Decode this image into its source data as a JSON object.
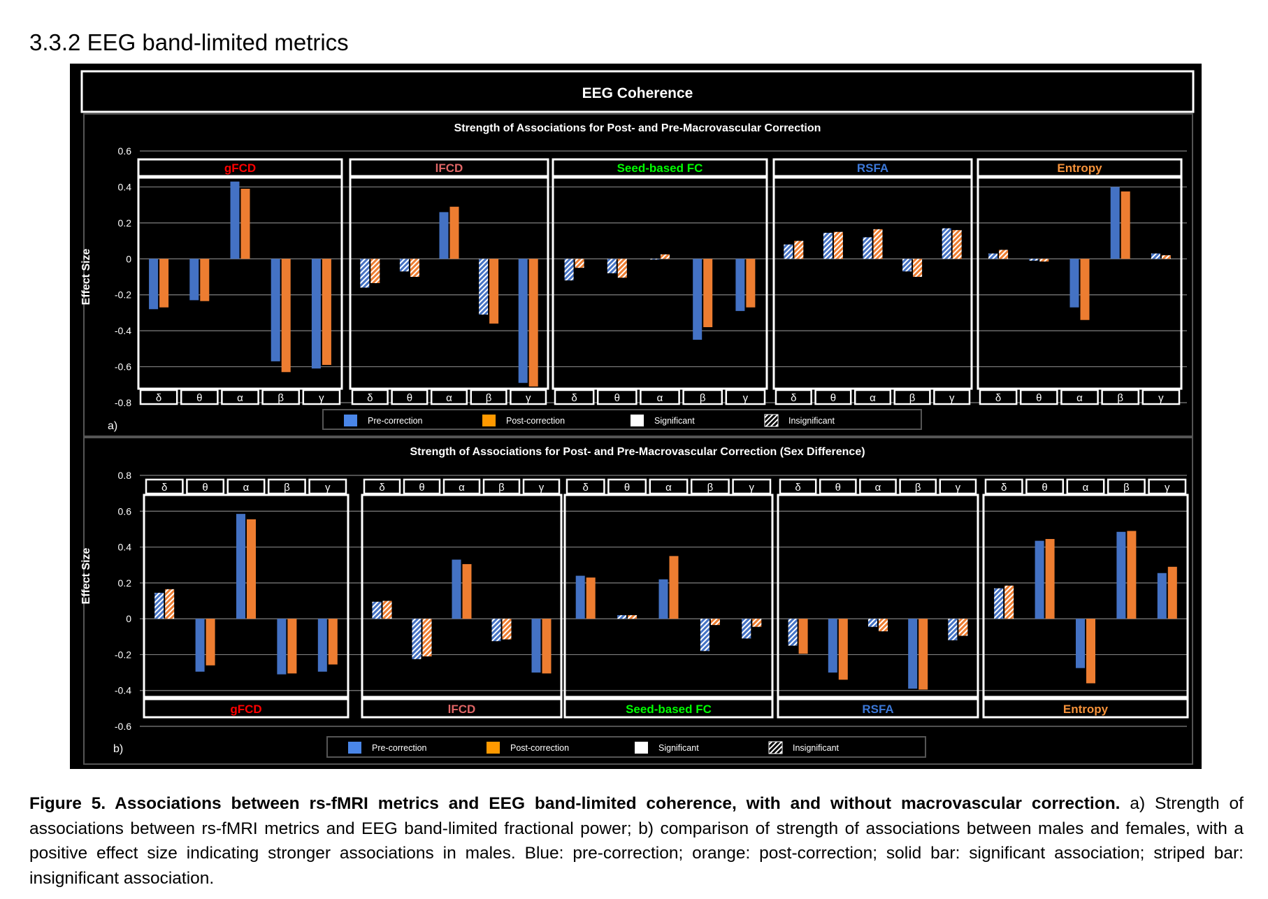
{
  "heading": "3.3.2 EEG band-limited metrics",
  "figure_header": "EEG Coherence",
  "caption": {
    "bold": "Figure 5. Associations between rs-fMRI metrics and EEG band-limited coherence, with and without macrovascular correction.",
    "text": " a) Strength of associations between rs-fMRI metrics and EEG band-limited fractional power; b) comparison of strength of associations between males and females, with a positive effect size indicating stronger associations in males. Blue: pre-correction; orange: post-correction; solid bar: significant association; striped bar: insignificant association."
  },
  "colors": {
    "pre": "#4472C4",
    "post": "#ED7D31",
    "legend_pre": "#4A86E8",
    "legend_post": "#FF9900"
  },
  "legend": {
    "pre": "Pre-correction",
    "post": "Post-correction",
    "significant": "Significant",
    "insignificant": "Insignificant"
  },
  "chart_data": [
    {
      "type": "bar",
      "panel_label": "a)",
      "title": "Strength of Associations for Post- and Pre-Macrovascular Correction",
      "ylabel": "Effect Size",
      "ylim": [
        -0.8,
        0.6
      ],
      "yticks": [
        "0.6",
        "0.4",
        "0.2",
        "0",
        "-0.2",
        "-0.4",
        "-0.6",
        "-0.8"
      ],
      "grid": true,
      "legend_position": "bottom",
      "categories": [
        "δ",
        "θ",
        "α",
        "β",
        "γ"
      ],
      "metrics": [
        {
          "name": "gFCD",
          "color": "#FF0000",
          "pre": [
            -0.28,
            -0.23,
            0.43,
            -0.57,
            -0.61
          ],
          "post": [
            -0.27,
            -0.235,
            0.39,
            -0.63,
            -0.59
          ],
          "pre_sig": [
            true,
            true,
            true,
            true,
            true
          ],
          "post_sig": [
            true,
            true,
            true,
            true,
            true
          ]
        },
        {
          "name": "lFCD",
          "color": "#E06666",
          "pre": [
            -0.16,
            -0.07,
            0.26,
            -0.31,
            -0.69
          ],
          "post": [
            -0.135,
            -0.1,
            0.29,
            -0.36,
            -0.71
          ],
          "pre_sig": [
            false,
            false,
            true,
            false,
            true
          ],
          "post_sig": [
            false,
            false,
            true,
            true,
            true
          ]
        },
        {
          "name": "Seed-based FC",
          "color": "#00FF00",
          "pre": [
            -0.12,
            -0.08,
            0.0,
            -0.45,
            -0.29
          ],
          "post": [
            -0.05,
            -0.105,
            0.025,
            -0.38,
            -0.27
          ],
          "pre_sig": [
            false,
            false,
            false,
            true,
            true
          ],
          "post_sig": [
            false,
            false,
            false,
            true,
            true
          ]
        },
        {
          "name": "RSFA",
          "color": "#3C78D8",
          "pre": [
            0.08,
            0.145,
            0.12,
            -0.07,
            0.17
          ],
          "post": [
            0.1,
            0.15,
            0.165,
            -0.1,
            0.16
          ],
          "pre_sig": [
            false,
            false,
            false,
            false,
            false
          ],
          "post_sig": [
            false,
            false,
            false,
            false,
            false
          ]
        },
        {
          "name": "Entropy",
          "color": "#F6923A",
          "pre": [
            0.03,
            -0.01,
            -0.27,
            0.4,
            0.03
          ],
          "post": [
            0.05,
            -0.015,
            -0.34,
            0.375,
            0.02
          ],
          "pre_sig": [
            false,
            false,
            true,
            true,
            false
          ],
          "post_sig": [
            false,
            false,
            true,
            true,
            false
          ]
        }
      ]
    },
    {
      "type": "bar",
      "panel_label": "b)",
      "title": "Strength of Associations for Post- and Pre-Macrovascular Correction (Sex Difference)",
      "ylabel": "Effect Size",
      "ylim": [
        -0.6,
        0.8
      ],
      "yticks": [
        "0.8",
        "0.6",
        "0.4",
        "0.2",
        "0",
        "-0.2",
        "-0.4",
        "-0.6"
      ],
      "grid": true,
      "legend_position": "bottom",
      "categories": [
        "δ",
        "θ",
        "α",
        "β",
        "γ"
      ],
      "metrics": [
        {
          "name": "gFCD",
          "color": "#FF0000",
          "pre": [
            0.145,
            -0.295,
            0.585,
            -0.31,
            -0.295
          ],
          "post": [
            0.165,
            -0.26,
            0.555,
            -0.305,
            -0.255
          ],
          "pre_sig": [
            false,
            true,
            true,
            true,
            true
          ],
          "post_sig": [
            false,
            true,
            true,
            true,
            true
          ]
        },
        {
          "name": "lFCD",
          "color": "#E06666",
          "pre": [
            0.095,
            -0.225,
            0.33,
            -0.125,
            -0.3
          ],
          "post": [
            0.1,
            -0.21,
            0.305,
            -0.115,
            -0.305
          ],
          "pre_sig": [
            false,
            false,
            true,
            false,
            true
          ],
          "post_sig": [
            false,
            false,
            true,
            false,
            true
          ]
        },
        {
          "name": "Seed-based FC",
          "color": "#00FF00",
          "pre": [
            0.24,
            0.02,
            0.22,
            -0.18,
            -0.11
          ],
          "post": [
            0.23,
            0.02,
            0.35,
            -0.035,
            -0.045
          ],
          "pre_sig": [
            true,
            false,
            true,
            false,
            false
          ],
          "post_sig": [
            true,
            false,
            true,
            false,
            false
          ]
        },
        {
          "name": "RSFA",
          "color": "#3C78D8",
          "pre": [
            -0.15,
            -0.3,
            -0.045,
            -0.39,
            -0.12
          ],
          "post": [
            -0.195,
            -0.34,
            -0.07,
            -0.395,
            -0.095
          ],
          "pre_sig": [
            false,
            true,
            false,
            true,
            false
          ],
          "post_sig": [
            true,
            true,
            false,
            true,
            false
          ]
        },
        {
          "name": "Entropy",
          "color": "#F6923A",
          "pre": [
            0.17,
            0.435,
            -0.275,
            0.485,
            0.255
          ],
          "post": [
            0.185,
            0.445,
            -0.36,
            0.49,
            0.29
          ],
          "pre_sig": [
            false,
            true,
            true,
            true,
            true
          ],
          "post_sig": [
            false,
            true,
            true,
            true,
            true
          ]
        }
      ]
    }
  ]
}
